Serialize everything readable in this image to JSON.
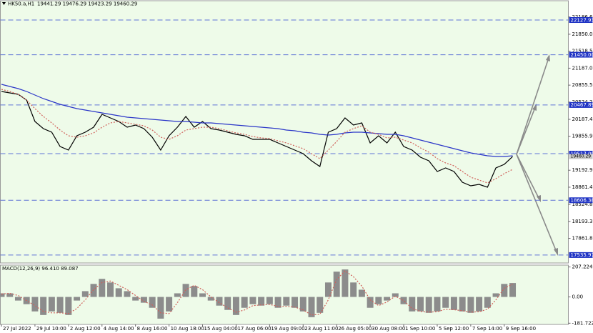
{
  "chart_data": [
    {
      "type": "line",
      "title": "HK50.a,H1",
      "subtitle": "19441.29 19476.29 19423.29 19460.29",
      "categories": [
        "27 Jul 2022",
        null,
        null,
        null,
        "29 Jul 10:00",
        null,
        null,
        null,
        "2 Aug 12:00",
        null,
        null,
        null,
        "4 Aug 14:00",
        null,
        null,
        null,
        "8 Aug 16:00",
        null,
        null,
        null,
        "10 Aug 18:00",
        null,
        null,
        null,
        "15 Aug 04:00",
        null,
        null,
        null,
        "17 Aug 06:00",
        null,
        null,
        null,
        "19 Aug 09:00",
        null,
        null,
        null,
        "23 Aug 11:00",
        null,
        null,
        null,
        "26 Aug 05:00",
        null,
        null,
        null,
        "30 Aug 08:00",
        null,
        null,
        null,
        "1 Sep 10:00",
        null,
        null,
        null,
        "5 Sep 12:00",
        null,
        null,
        null,
        "7 Sep 14:00",
        null,
        null,
        null,
        "9 Sep 16:00",
        null
      ],
      "series": [
        {
          "color": "#000000",
          "values": [
            20732,
            20704,
            20676,
            20564,
            20146,
            20006,
            19936,
            19657,
            19587,
            19866,
            19936,
            20034,
            20285,
            20215,
            20146,
            20034,
            20076,
            20006,
            19838,
            19587,
            19866,
            20034,
            20243,
            20034,
            20146,
            20006,
            19978,
            19936,
            19894,
            19866,
            19797,
            19797,
            19797,
            19727,
            19657,
            19587,
            19517,
            19378,
            19266,
            19936,
            20006,
            20215,
            20076,
            20118,
            19727,
            19866,
            19727,
            19936,
            19657,
            19587,
            19448,
            19378,
            19168,
            19238,
            19168,
            18959,
            18889,
            18917,
            18861,
            19238,
            19308,
            19460
          ]
        },
        {
          "color": "#2a35c8",
          "values": [
            20871,
            20830,
            20788,
            20732,
            20662,
            20592,
            20537,
            20481,
            20439,
            20397,
            20369,
            20341,
            20313,
            20285,
            20257,
            20229,
            20215,
            20201,
            20187,
            20173,
            20159,
            20146,
            20146,
            20132,
            20118,
            20118,
            20104,
            20090,
            20076,
            20062,
            20048,
            20034,
            20020,
            20006,
            19978,
            19964,
            19936,
            19922,
            19894,
            19880,
            19894,
            19922,
            19936,
            19936,
            19922,
            19908,
            19894,
            19894,
            19866,
            19825,
            19783,
            19741,
            19699,
            19657,
            19615,
            19573,
            19531,
            19503,
            19475,
            19462,
            19462,
            19475
          ]
        },
        {
          "color": "#d0605a",
          "dashed": true,
          "values": [
            20774,
            20732,
            20676,
            20564,
            20397,
            20243,
            20118,
            19978,
            19866,
            19838,
            19866,
            19922,
            20034,
            20118,
            20146,
            20118,
            20090,
            20062,
            19978,
            19838,
            19797,
            19866,
            19978,
            20006,
            20034,
            20034,
            20006,
            19964,
            19922,
            19894,
            19852,
            19825,
            19811,
            19769,
            19727,
            19671,
            19615,
            19517,
            19420,
            19587,
            19755,
            19936,
            20006,
            20062,
            19936,
            19894,
            19825,
            19838,
            19783,
            19727,
            19629,
            19545,
            19420,
            19336,
            19280,
            19168,
            19057,
            19001,
            18945,
            19029,
            19127,
            19210
          ]
        }
      ],
      "ylim": [
        17381,
        22505
      ],
      "yticks": [
        {
          "value": 22186.6,
          "label": "22186.60"
        },
        {
          "value": 21850,
          "label": "21850.00"
        },
        {
          "value": 21518.5,
          "label": "21518.50"
        },
        {
          "value": 21187,
          "label": "21187.00"
        },
        {
          "value": 20855.5,
          "label": "20855.50"
        },
        {
          "value": 20524.2,
          "label": "20524.20"
        },
        {
          "value": 20187.4,
          "label": "20187.40"
        },
        {
          "value": 19855.9,
          "label": "19855.90"
        },
        {
          "value": 19192.9,
          "label": "19192.90"
        },
        {
          "value": 18861.4,
          "label": "18861.40"
        },
        {
          "value": 18524.8,
          "label": "18524.80"
        },
        {
          "value": 18193.3,
          "label": "18193.30"
        },
        {
          "value": 17861.8,
          "label": "17861.80"
        }
      ],
      "levels": [
        22127.93,
        {
          "value": 21450,
          "label": "21450.00"
        },
        20467.89,
        {
          "value": 19517,
          "label": "19517.00"
        },
        18606.38,
        17535.97
      ],
      "level_color": "#1f33c4",
      "last_price": 19460.29
    },
    {
      "type": "bar",
      "title": "MACD(12,26,9) 96.410 89.087",
      "color": "#8c8c8c",
      "values": [
        25,
        25,
        -25,
        -50,
        -100,
        -125,
        -100,
        -110,
        -125,
        -25,
        40,
        90,
        125,
        100,
        60,
        40,
        -25,
        -40,
        -75,
        -150,
        -100,
        25,
        90,
        75,
        25,
        -25,
        -60,
        -90,
        -125,
        -75,
        -50,
        -60,
        -50,
        -75,
        -60,
        -75,
        -100,
        -140,
        -110,
        100,
        175,
        190,
        100,
        50,
        -75,
        -50,
        -25,
        25,
        -50,
        -100,
        -100,
        -110,
        -100,
        -75,
        -90,
        -100,
        -110,
        -100,
        -75,
        25,
        90,
        96
      ],
      "signal": {
        "color": "#d0605a",
        "values": [
          20,
          25,
          10,
          -25,
          -60,
          -100,
          -110,
          -110,
          -115,
          -80,
          -20,
          50,
          100,
          110,
          80,
          50,
          10,
          -30,
          -55,
          -110,
          -115,
          -40,
          50,
          80,
          50,
          0,
          -40,
          -75,
          -105,
          -90,
          -60,
          -55,
          -52,
          -65,
          -65,
          -70,
          -90,
          -125,
          -120,
          -20,
          120,
          180,
          140,
          75,
          -20,
          -60,
          -35,
          5,
          -25,
          -80,
          -100,
          -105,
          -102,
          -85,
          -88,
          -95,
          -105,
          -102,
          -85,
          -20,
          60,
          89
        ]
      },
      "ylim": [
        -190,
        220
      ],
      "yticks": [
        {
          "value": 207.224,
          "label": "207.224"
        },
        {
          "value": 0,
          "label": "0.00"
        },
        {
          "value": -181.722,
          "label": "-181.722"
        }
      ]
    }
  ]
}
